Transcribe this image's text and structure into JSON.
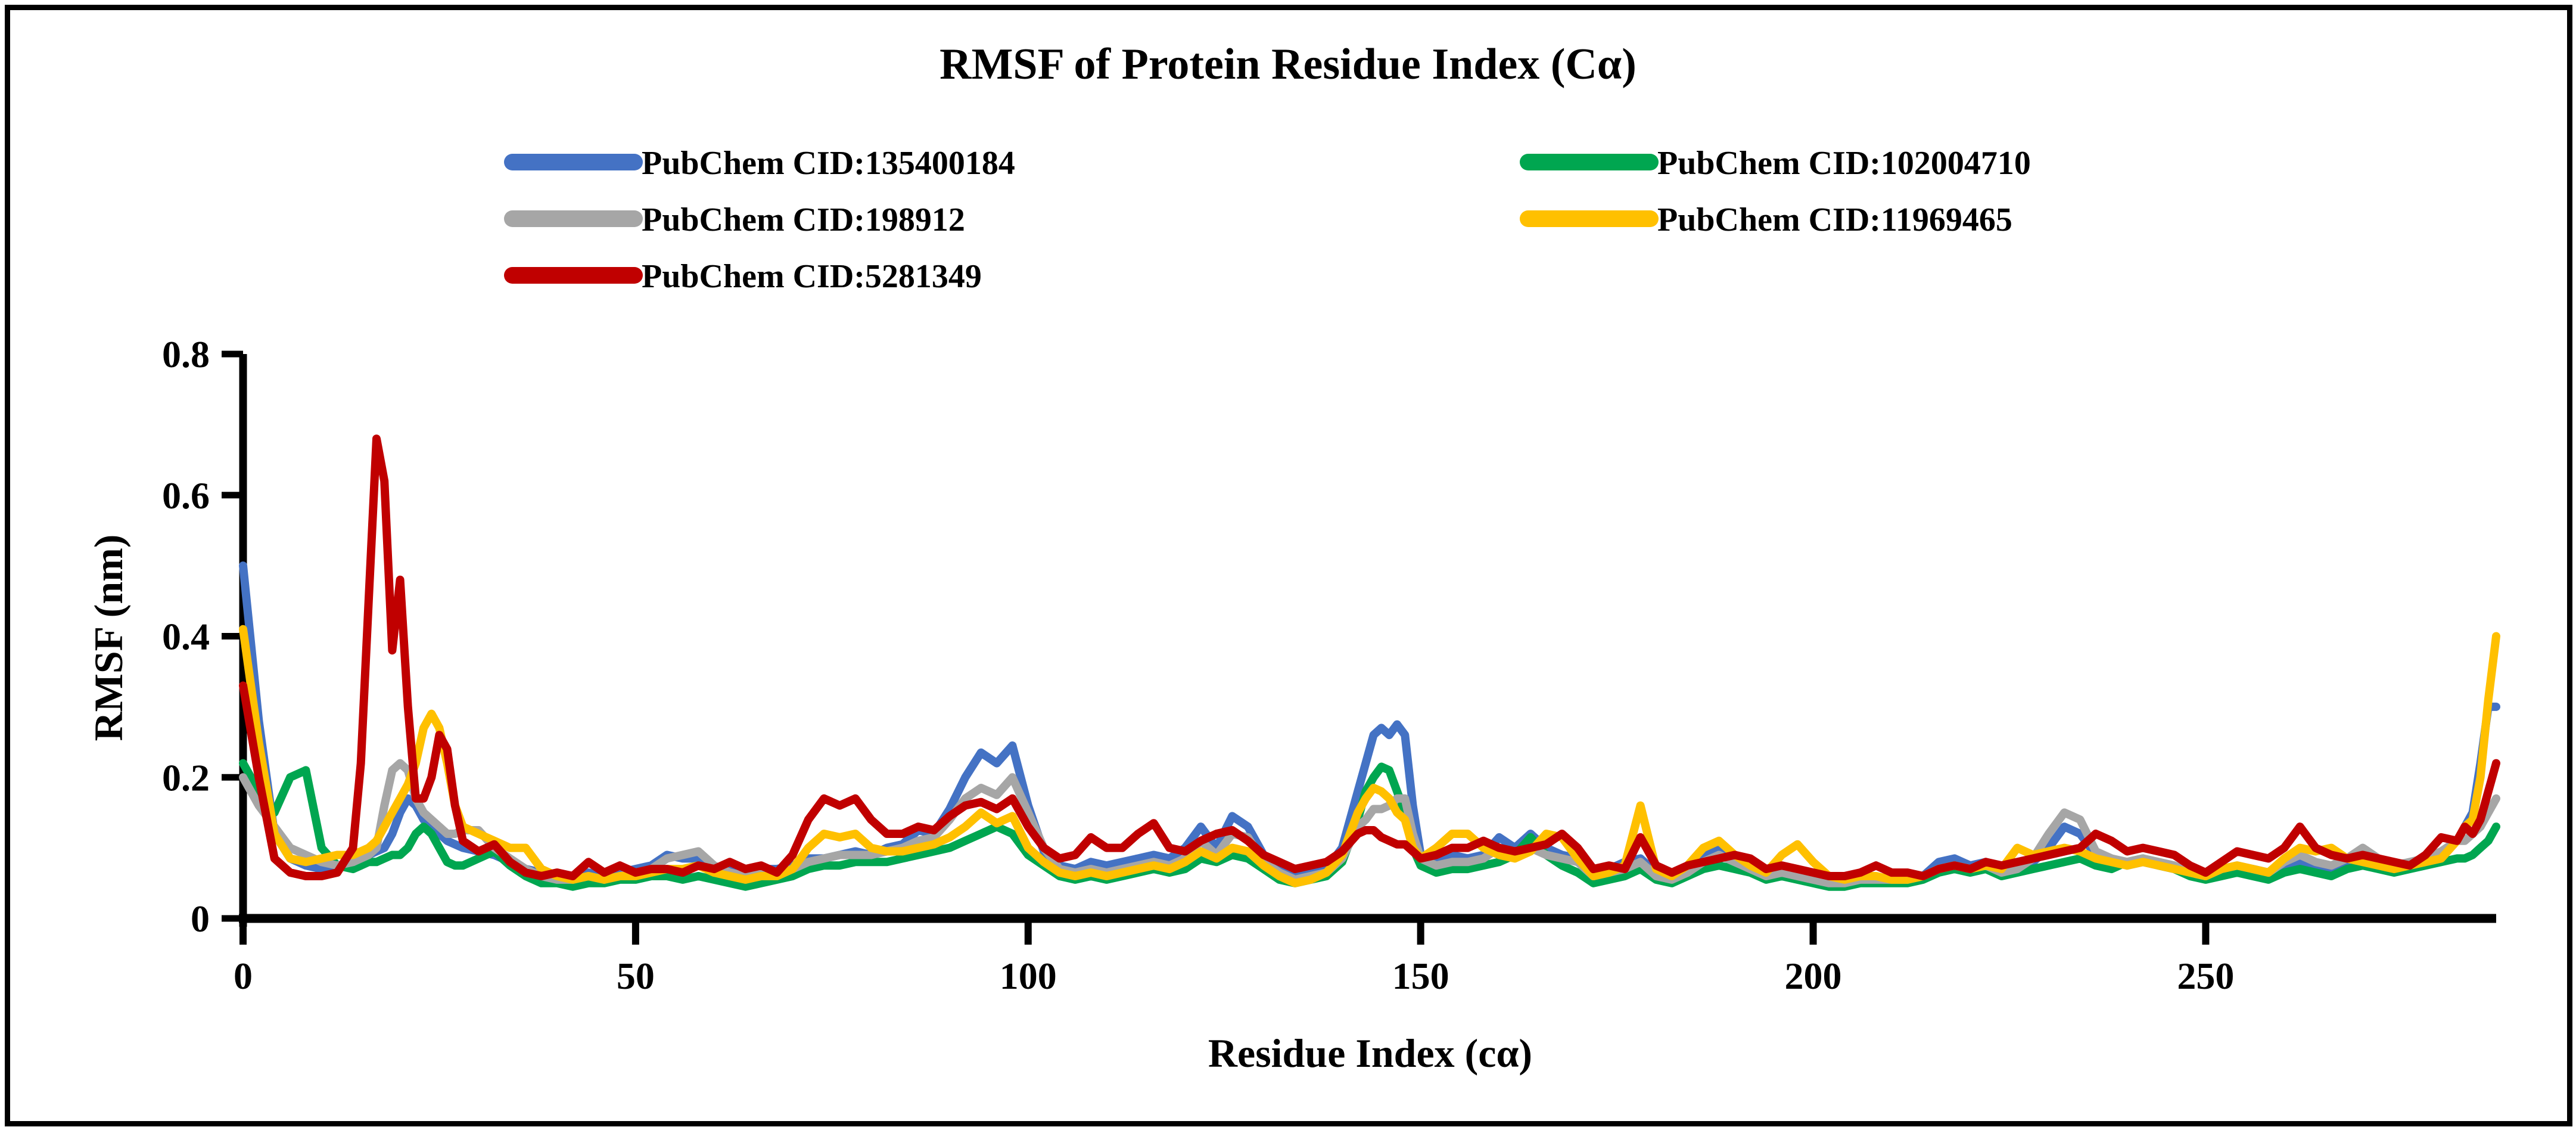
{
  "chart_data": {
    "type": "line",
    "title": "RMSF of Protein Residue Index (Cα)",
    "xlabel": "Residue Index (cα)",
    "ylabel": "RMSF (nm)",
    "xlim": [
      0,
      287
    ],
    "ylim": [
      0,
      0.8
    ],
    "x_ticks": [
      {
        "v": 0,
        "label": "0"
      },
      {
        "v": 50,
        "label": "50"
      },
      {
        "v": 100,
        "label": "100"
      },
      {
        "v": 150,
        "label": "150"
      },
      {
        "v": 200,
        "label": "200"
      },
      {
        "v": 250,
        "label": "250"
      }
    ],
    "y_ticks": [
      {
        "v": 0,
        "label": "0"
      },
      {
        "v": 0.2,
        "label": "0.2"
      },
      {
        "v": 0.4,
        "label": "0.4"
      },
      {
        "v": 0.6,
        "label": "0.6"
      },
      {
        "v": 0.8,
        "label": "0.8"
      }
    ],
    "grid": false,
    "legend_position": "top-two-columns",
    "axis_color": "#000000",
    "background_color": "#ffffff",
    "x": [
      0,
      2,
      4,
      6,
      8,
      10,
      12,
      14,
      15,
      16,
      17,
      18,
      19,
      20,
      21,
      22,
      23,
      24,
      25,
      26,
      27,
      28,
      30,
      32,
      34,
      36,
      38,
      40,
      42,
      44,
      46,
      48,
      50,
      52,
      54,
      56,
      58,
      60,
      62,
      64,
      66,
      68,
      70,
      72,
      74,
      76,
      78,
      80,
      82,
      84,
      86,
      88,
      90,
      92,
      94,
      96,
      98,
      100,
      102,
      104,
      106,
      108,
      110,
      112,
      114,
      116,
      118,
      120,
      122,
      124,
      126,
      128,
      130,
      132,
      134,
      136,
      138,
      140,
      142,
      143,
      144,
      145,
      146,
      147,
      148,
      149,
      150,
      152,
      154,
      156,
      158,
      160,
      162,
      164,
      166,
      168,
      170,
      172,
      174,
      176,
      178,
      180,
      182,
      184,
      186,
      188,
      190,
      192,
      194,
      196,
      198,
      200,
      202,
      204,
      206,
      208,
      210,
      212,
      214,
      216,
      218,
      220,
      222,
      224,
      226,
      228,
      230,
      232,
      234,
      236,
      238,
      240,
      242,
      244,
      246,
      248,
      250,
      252,
      254,
      256,
      258,
      260,
      262,
      264,
      266,
      268,
      270,
      272,
      274,
      276,
      278,
      280,
      282,
      283,
      284,
      285,
      286,
      287
    ],
    "series": [
      {
        "name": "PubChem CID:135400184",
        "color": "#4472C4",
        "values": [
          0.5,
          0.28,
          0.12,
          0.085,
          0.075,
          0.07,
          0.07,
          0.08,
          0.085,
          0.09,
          0.095,
          0.1,
          0.12,
          0.15,
          0.17,
          0.16,
          0.14,
          0.13,
          0.12,
          0.11,
          0.105,
          0.1,
          0.095,
          0.09,
          0.08,
          0.07,
          0.065,
          0.06,
          0.06,
          0.065,
          0.06,
          0.065,
          0.07,
          0.075,
          0.09,
          0.085,
          0.085,
          0.07,
          0.07,
          0.065,
          0.07,
          0.07,
          0.075,
          0.085,
          0.085,
          0.09,
          0.095,
          0.09,
          0.1,
          0.105,
          0.125,
          0.12,
          0.155,
          0.2,
          0.235,
          0.22,
          0.245,
          0.16,
          0.095,
          0.075,
          0.07,
          0.08,
          0.075,
          0.08,
          0.085,
          0.09,
          0.085,
          0.1,
          0.13,
          0.1,
          0.145,
          0.13,
          0.09,
          0.07,
          0.06,
          0.065,
          0.07,
          0.1,
          0.18,
          0.22,
          0.26,
          0.27,
          0.26,
          0.275,
          0.26,
          0.16,
          0.09,
          0.08,
          0.09,
          0.085,
          0.09,
          0.115,
          0.1,
          0.12,
          0.1,
          0.09,
          0.085,
          0.065,
          0.07,
          0.08,
          0.085,
          0.065,
          0.06,
          0.07,
          0.09,
          0.1,
          0.085,
          0.075,
          0.065,
          0.065,
          0.06,
          0.055,
          0.05,
          0.05,
          0.055,
          0.055,
          0.055,
          0.055,
          0.06,
          0.08,
          0.085,
          0.075,
          0.08,
          0.07,
          0.075,
          0.08,
          0.1,
          0.13,
          0.12,
          0.09,
          0.085,
          0.075,
          0.08,
          0.075,
          0.07,
          0.065,
          0.06,
          0.065,
          0.07,
          0.07,
          0.065,
          0.075,
          0.08,
          0.075,
          0.07,
          0.075,
          0.08,
          0.075,
          0.07,
          0.075,
          0.08,
          0.09,
          0.11,
          0.13,
          0.15,
          0.22,
          0.3,
          0.3
        ]
      },
      {
        "name": "PubChem CID:102004710",
        "color": "#00A650",
        "values": [
          0.22,
          0.18,
          0.15,
          0.2,
          0.21,
          0.1,
          0.075,
          0.07,
          0.075,
          0.08,
          0.08,
          0.085,
          0.09,
          0.09,
          0.1,
          0.12,
          0.13,
          0.12,
          0.1,
          0.08,
          0.075,
          0.075,
          0.085,
          0.095,
          0.075,
          0.06,
          0.05,
          0.05,
          0.045,
          0.05,
          0.05,
          0.055,
          0.055,
          0.06,
          0.06,
          0.055,
          0.06,
          0.055,
          0.05,
          0.045,
          0.05,
          0.055,
          0.06,
          0.07,
          0.075,
          0.075,
          0.08,
          0.08,
          0.08,
          0.085,
          0.09,
          0.095,
          0.1,
          0.11,
          0.12,
          0.13,
          0.12,
          0.09,
          0.075,
          0.06,
          0.055,
          0.06,
          0.055,
          0.06,
          0.065,
          0.07,
          0.065,
          0.07,
          0.085,
          0.08,
          0.09,
          0.085,
          0.07,
          0.055,
          0.05,
          0.055,
          0.06,
          0.08,
          0.14,
          0.18,
          0.2,
          0.215,
          0.21,
          0.18,
          0.15,
          0.1,
          0.075,
          0.065,
          0.07,
          0.07,
          0.075,
          0.08,
          0.09,
          0.115,
          0.09,
          0.075,
          0.065,
          0.05,
          0.055,
          0.06,
          0.07,
          0.055,
          0.05,
          0.06,
          0.07,
          0.075,
          0.07,
          0.065,
          0.055,
          0.06,
          0.055,
          0.05,
          0.045,
          0.045,
          0.05,
          0.05,
          0.05,
          0.05,
          0.055,
          0.065,
          0.07,
          0.065,
          0.07,
          0.06,
          0.065,
          0.07,
          0.075,
          0.08,
          0.085,
          0.075,
          0.07,
          0.08,
          0.085,
          0.075,
          0.07,
          0.06,
          0.055,
          0.06,
          0.065,
          0.06,
          0.055,
          0.065,
          0.07,
          0.065,
          0.06,
          0.07,
          0.075,
          0.07,
          0.065,
          0.07,
          0.075,
          0.08,
          0.085,
          0.085,
          0.09,
          0.1,
          0.11,
          0.13
        ]
      },
      {
        "name": "PubChem CID:198912",
        "color": "#A6A6A6",
        "values": [
          0.2,
          0.16,
          0.13,
          0.1,
          0.09,
          0.08,
          0.075,
          0.08,
          0.085,
          0.09,
          0.1,
          0.16,
          0.21,
          0.22,
          0.21,
          0.17,
          0.15,
          0.14,
          0.13,
          0.12,
          0.12,
          0.125,
          0.125,
          0.1,
          0.085,
          0.07,
          0.06,
          0.055,
          0.055,
          0.06,
          0.055,
          0.06,
          0.065,
          0.07,
          0.085,
          0.09,
          0.095,
          0.075,
          0.065,
          0.06,
          0.065,
          0.065,
          0.07,
          0.08,
          0.085,
          0.09,
          0.09,
          0.09,
          0.095,
          0.1,
          0.11,
          0.115,
          0.14,
          0.17,
          0.185,
          0.175,
          0.2,
          0.15,
          0.1,
          0.07,
          0.065,
          0.07,
          0.065,
          0.07,
          0.075,
          0.08,
          0.075,
          0.085,
          0.11,
          0.09,
          0.12,
          0.115,
          0.08,
          0.065,
          0.055,
          0.06,
          0.065,
          0.085,
          0.13,
          0.14,
          0.155,
          0.155,
          0.16,
          0.17,
          0.17,
          0.12,
          0.085,
          0.075,
          0.08,
          0.08,
          0.085,
          0.1,
          0.09,
          0.1,
          0.09,
          0.085,
          0.08,
          0.06,
          0.065,
          0.07,
          0.08,
          0.06,
          0.055,
          0.065,
          0.08,
          0.09,
          0.08,
          0.07,
          0.06,
          0.065,
          0.06,
          0.055,
          0.05,
          0.05,
          0.055,
          0.055,
          0.055,
          0.055,
          0.06,
          0.07,
          0.075,
          0.07,
          0.075,
          0.065,
          0.07,
          0.085,
          0.12,
          0.15,
          0.14,
          0.095,
          0.085,
          0.08,
          0.085,
          0.08,
          0.075,
          0.065,
          0.06,
          0.07,
          0.075,
          0.07,
          0.065,
          0.08,
          0.09,
          0.08,
          0.075,
          0.085,
          0.1,
          0.085,
          0.075,
          0.08,
          0.085,
          0.095,
          0.11,
          0.11,
          0.12,
          0.13,
          0.15,
          0.17
        ]
      },
      {
        "name": "PubChem CID:11969465",
        "color": "#FFC000",
        "values": [
          0.41,
          0.25,
          0.12,
          0.085,
          0.08,
          0.085,
          0.09,
          0.09,
          0.095,
          0.1,
          0.11,
          0.13,
          0.15,
          0.17,
          0.19,
          0.22,
          0.27,
          0.29,
          0.27,
          0.22,
          0.16,
          0.13,
          0.12,
          0.11,
          0.1,
          0.1,
          0.07,
          0.06,
          0.055,
          0.06,
          0.055,
          0.06,
          0.06,
          0.065,
          0.07,
          0.07,
          0.075,
          0.065,
          0.06,
          0.055,
          0.06,
          0.06,
          0.07,
          0.1,
          0.12,
          0.115,
          0.12,
          0.1,
          0.095,
          0.095,
          0.1,
          0.105,
          0.115,
          0.13,
          0.15,
          0.135,
          0.145,
          0.1,
          0.08,
          0.065,
          0.06,
          0.065,
          0.06,
          0.065,
          0.07,
          0.075,
          0.07,
          0.08,
          0.095,
          0.085,
          0.1,
          0.095,
          0.075,
          0.06,
          0.05,
          0.055,
          0.065,
          0.09,
          0.15,
          0.17,
          0.185,
          0.18,
          0.17,
          0.15,
          0.14,
          0.1,
          0.085,
          0.1,
          0.12,
          0.12,
          0.1,
          0.09,
          0.085,
          0.095,
          0.12,
          0.115,
          0.085,
          0.06,
          0.065,
          0.075,
          0.16,
          0.07,
          0.06,
          0.075,
          0.1,
          0.11,
          0.09,
          0.075,
          0.065,
          0.09,
          0.105,
          0.08,
          0.06,
          0.055,
          0.06,
          0.06,
          0.055,
          0.055,
          0.06,
          0.07,
          0.075,
          0.07,
          0.075,
          0.07,
          0.1,
          0.09,
          0.095,
          0.1,
          0.095,
          0.085,
          0.08,
          0.075,
          0.08,
          0.075,
          0.07,
          0.065,
          0.06,
          0.07,
          0.075,
          0.07,
          0.065,
          0.085,
          0.1,
          0.095,
          0.1,
          0.085,
          0.08,
          0.075,
          0.07,
          0.075,
          0.08,
          0.085,
          0.11,
          0.13,
          0.14,
          0.2,
          0.31,
          0.4
        ]
      },
      {
        "name": "PubChem CID:5281349",
        "color": "#C00000",
        "values": [
          0.33,
          0.2,
          0.085,
          0.065,
          0.06,
          0.06,
          0.065,
          0.1,
          0.22,
          0.45,
          0.68,
          0.62,
          0.38,
          0.48,
          0.3,
          0.17,
          0.17,
          0.2,
          0.26,
          0.24,
          0.16,
          0.11,
          0.095,
          0.105,
          0.08,
          0.065,
          0.06,
          0.065,
          0.06,
          0.08,
          0.065,
          0.075,
          0.065,
          0.07,
          0.07,
          0.065,
          0.075,
          0.07,
          0.08,
          0.07,
          0.075,
          0.065,
          0.09,
          0.14,
          0.17,
          0.16,
          0.17,
          0.14,
          0.12,
          0.12,
          0.13,
          0.125,
          0.145,
          0.16,
          0.165,
          0.155,
          0.17,
          0.13,
          0.1,
          0.085,
          0.09,
          0.115,
          0.1,
          0.1,
          0.12,
          0.135,
          0.1,
          0.095,
          0.11,
          0.12,
          0.125,
          0.11,
          0.09,
          0.08,
          0.07,
          0.075,
          0.08,
          0.095,
          0.12,
          0.125,
          0.125,
          0.115,
          0.11,
          0.105,
          0.105,
          0.095,
          0.085,
          0.09,
          0.1,
          0.1,
          0.11,
          0.1,
          0.095,
          0.1,
          0.105,
          0.12,
          0.1,
          0.07,
          0.075,
          0.07,
          0.115,
          0.075,
          0.065,
          0.075,
          0.08,
          0.085,
          0.09,
          0.085,
          0.07,
          0.075,
          0.07,
          0.065,
          0.06,
          0.06,
          0.065,
          0.075,
          0.065,
          0.065,
          0.06,
          0.07,
          0.075,
          0.07,
          0.08,
          0.075,
          0.08,
          0.085,
          0.09,
          0.095,
          0.1,
          0.12,
          0.11,
          0.095,
          0.1,
          0.095,
          0.09,
          0.075,
          0.065,
          0.08,
          0.095,
          0.09,
          0.085,
          0.1,
          0.13,
          0.1,
          0.09,
          0.085,
          0.09,
          0.085,
          0.08,
          0.075,
          0.09,
          0.115,
          0.11,
          0.13,
          0.12,
          0.14,
          0.18,
          0.22
        ]
      }
    ]
  }
}
